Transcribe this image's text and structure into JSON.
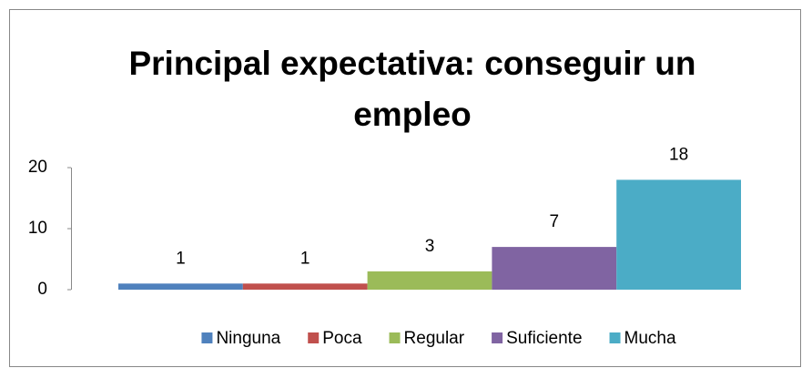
{
  "chart_data": {
    "type": "bar",
    "title": "Principal expectativa: conseguir un empleo",
    "categories": [
      null
    ],
    "series": [
      {
        "name": "Ninguna",
        "color": "#4f81bd",
        "values": [
          1
        ]
      },
      {
        "name": "Poca",
        "color": "#c0504d",
        "values": [
          1
        ]
      },
      {
        "name": "Regular",
        "color": "#9bbb59",
        "values": [
          3
        ]
      },
      {
        "name": "Suficiente",
        "color": "#8064a2",
        "values": [
          7
        ]
      },
      {
        "name": "Mucha",
        "color": "#4bacc6",
        "values": [
          18
        ]
      }
    ],
    "ylim": [
      0,
      20
    ],
    "yticks": [
      0,
      10,
      20
    ],
    "grid": false,
    "legend": "bottom"
  }
}
